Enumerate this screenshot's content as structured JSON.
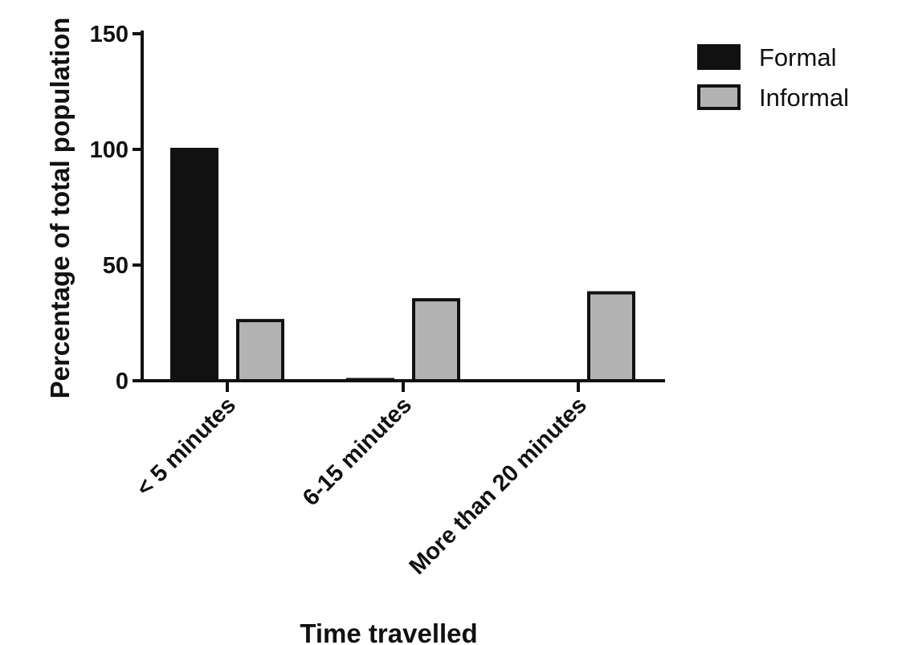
{
  "chart_data": {
    "type": "bar",
    "categories": [
      "< 5 minutes",
      "6-15 minutes",
      "More than 20 minutes"
    ],
    "series": [
      {
        "name": "Formal",
        "values": [
          100,
          0.5,
          0
        ],
        "color": "#111111"
      },
      {
        "name": "Informal",
        "values": [
          26,
          35,
          38
        ],
        "color": "#b3b3b3"
      }
    ],
    "xlabel": "Time travelled",
    "ylabel": "Percentage of total population",
    "ylim": [
      0,
      150
    ],
    "yticks": [
      0,
      50,
      100,
      150
    ],
    "legend_position": "top-right",
    "grid": false
  }
}
